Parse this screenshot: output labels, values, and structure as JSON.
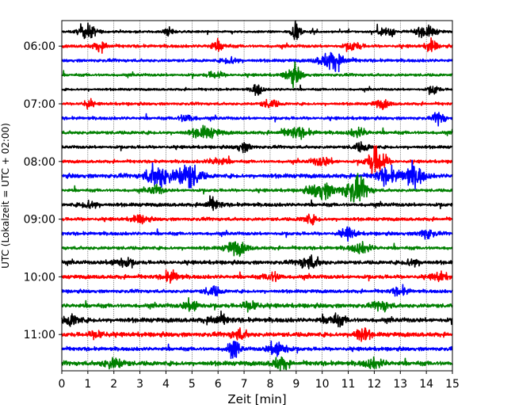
{
  "chart_data": {
    "type": "line",
    "title": "",
    "xlabel": "Zeit  [min]",
    "ylabel": "UTC (Lokalzeit = UTC + 02:00)",
    "xlim": [
      0,
      15
    ],
    "x_ticks": [
      0,
      1,
      2,
      3,
      4,
      5,
      6,
      7,
      8,
      9,
      10,
      11,
      12,
      13,
      14,
      15
    ],
    "x_tick_labels": [
      "0",
      "1",
      "2",
      "3",
      "4",
      "5",
      "6",
      "7",
      "8",
      "9",
      "10",
      "11",
      "12",
      "13",
      "14",
      "15"
    ],
    "y_tick_labels": [
      "06:00",
      "07:00",
      "08:00",
      "09:00",
      "10:00",
      "11:00"
    ],
    "grid": "vertical dotted",
    "colors": [
      "#000000",
      "#ff0000",
      "#0000ff",
      "#008000"
    ],
    "traces": [
      {
        "start": "05:45",
        "color": "#000000",
        "noise": 0.15,
        "events": [
          [
            1.0,
            1.0,
            0.35
          ],
          [
            4.1,
            0.6,
            0.2
          ],
          [
            9.0,
            1.0,
            0.2
          ],
          [
            12.5,
            0.8,
            0.3
          ],
          [
            14.0,
            0.8,
            0.4
          ]
        ]
      },
      {
        "start": "06:00",
        "color": "#ff0000",
        "noise": 0.2,
        "events": [
          [
            1.5,
            0.6,
            0.3
          ],
          [
            6.0,
            0.6,
            0.3
          ],
          [
            11.2,
            0.6,
            0.3
          ],
          [
            14.2,
            1.0,
            0.2
          ]
        ]
      },
      {
        "start": "06:15",
        "color": "#0000ff",
        "noise": 0.2,
        "events": [
          [
            10.4,
            1.3,
            0.5
          ],
          [
            6.5,
            0.5,
            0.3
          ]
        ]
      },
      {
        "start": "06:30",
        "color": "#008000",
        "noise": 0.18,
        "events": [
          [
            8.9,
            1.3,
            0.3
          ],
          [
            5.9,
            0.5,
            0.3
          ]
        ]
      },
      {
        "start": "06:45",
        "color": "#000000",
        "noise": 0.15,
        "events": [
          [
            7.5,
            0.9,
            0.2
          ],
          [
            14.3,
            0.7,
            0.2
          ]
        ]
      },
      {
        "start": "07:00",
        "color": "#ff0000",
        "noise": 0.18,
        "events": [
          [
            1.0,
            0.7,
            0.2
          ],
          [
            8.0,
            0.6,
            0.3
          ],
          [
            12.3,
            0.6,
            0.3
          ]
        ]
      },
      {
        "start": "07:15",
        "color": "#0000ff",
        "noise": 0.2,
        "events": [
          [
            4.8,
            0.6,
            0.3
          ],
          [
            14.5,
            1.0,
            0.2
          ]
        ]
      },
      {
        "start": "07:30",
        "color": "#008000",
        "noise": 0.22,
        "events": [
          [
            5.5,
            0.8,
            0.5
          ],
          [
            9.0,
            0.7,
            0.5
          ],
          [
            11.4,
            0.7,
            0.3
          ]
        ]
      },
      {
        "start": "07:45",
        "color": "#000000",
        "noise": 0.2,
        "events": [
          [
            7.0,
            0.6,
            0.3
          ],
          [
            11.5,
            0.6,
            0.3
          ]
        ]
      },
      {
        "start": "08:00",
        "color": "#ff0000",
        "noise": 0.2,
        "events": [
          [
            12.1,
            2.2,
            0.35
          ],
          [
            6.0,
            0.5,
            0.4
          ],
          [
            10.0,
            0.6,
            0.4
          ]
        ]
      },
      {
        "start": "08:15",
        "color": "#0000ff",
        "noise": 0.28,
        "events": [
          [
            3.7,
            1.7,
            0.45
          ],
          [
            4.85,
            1.9,
            0.45
          ],
          [
            12.5,
            1.1,
            0.4
          ],
          [
            13.5,
            1.5,
            0.4
          ]
        ]
      },
      {
        "start": "08:30",
        "color": "#008000",
        "noise": 0.2,
        "events": [
          [
            10.0,
            1.2,
            0.5
          ],
          [
            11.3,
            1.8,
            0.45
          ],
          [
            3.6,
            0.6,
            0.3
          ]
        ]
      },
      {
        "start": "08:45",
        "color": "#000000",
        "noise": 0.24,
        "events": [
          [
            5.8,
            0.8,
            0.3
          ],
          [
            1.1,
            0.6,
            0.3
          ]
        ]
      },
      {
        "start": "09:00",
        "color": "#ff0000",
        "noise": 0.22,
        "events": [
          [
            3.0,
            0.6,
            0.3
          ],
          [
            9.5,
            0.6,
            0.3
          ]
        ]
      },
      {
        "start": "09:15",
        "color": "#0000ff",
        "noise": 0.22,
        "events": [
          [
            11.0,
            0.8,
            0.3
          ],
          [
            14.0,
            0.7,
            0.3
          ]
        ]
      },
      {
        "start": "09:30",
        "color": "#008000",
        "noise": 0.22,
        "events": [
          [
            6.7,
            1.0,
            0.4
          ],
          [
            11.5,
            0.7,
            0.4
          ]
        ]
      },
      {
        "start": "09:45",
        "color": "#000000",
        "noise": 0.25,
        "events": [
          [
            2.3,
            0.7,
            0.4
          ],
          [
            9.5,
            0.9,
            0.4
          ],
          [
            13.5,
            0.6,
            0.3
          ]
        ]
      },
      {
        "start": "10:00",
        "color": "#ff0000",
        "noise": 0.26,
        "events": [
          [
            4.2,
            0.8,
            0.3
          ],
          [
            8.1,
            0.7,
            0.3
          ],
          [
            14.5,
            0.6,
            0.3
          ]
        ]
      },
      {
        "start": "10:15",
        "color": "#0000ff",
        "noise": 0.22,
        "events": [
          [
            5.8,
            0.7,
            0.3
          ],
          [
            13.0,
            0.6,
            0.3
          ]
        ]
      },
      {
        "start": "10:30",
        "color": "#008000",
        "noise": 0.28,
        "events": [
          [
            5.0,
            0.9,
            0.3
          ],
          [
            7.3,
            0.8,
            0.3
          ],
          [
            12.3,
            0.7,
            0.3
          ]
        ]
      },
      {
        "start": "10:45",
        "color": "#000000",
        "noise": 0.3,
        "events": [
          [
            0.4,
            0.8,
            0.3
          ],
          [
            6.0,
            0.7,
            0.4
          ],
          [
            10.5,
            0.7,
            0.4
          ]
        ]
      },
      {
        "start": "11:00",
        "color": "#ff0000",
        "noise": 0.3,
        "events": [
          [
            11.5,
            1.0,
            0.3
          ],
          [
            6.8,
            0.7,
            0.3
          ],
          [
            1.4,
            0.6,
            0.3
          ]
        ]
      },
      {
        "start": "11:15",
        "color": "#0000ff",
        "noise": 0.25,
        "events": [
          [
            6.6,
            1.2,
            0.25
          ],
          [
            8.3,
            1.3,
            0.35
          ]
        ]
      },
      {
        "start": "11:30",
        "color": "#008000",
        "noise": 0.3,
        "events": [
          [
            2.0,
            0.7,
            0.4
          ],
          [
            8.4,
            0.9,
            0.3
          ],
          [
            12.0,
            0.6,
            0.4
          ]
        ]
      }
    ]
  }
}
